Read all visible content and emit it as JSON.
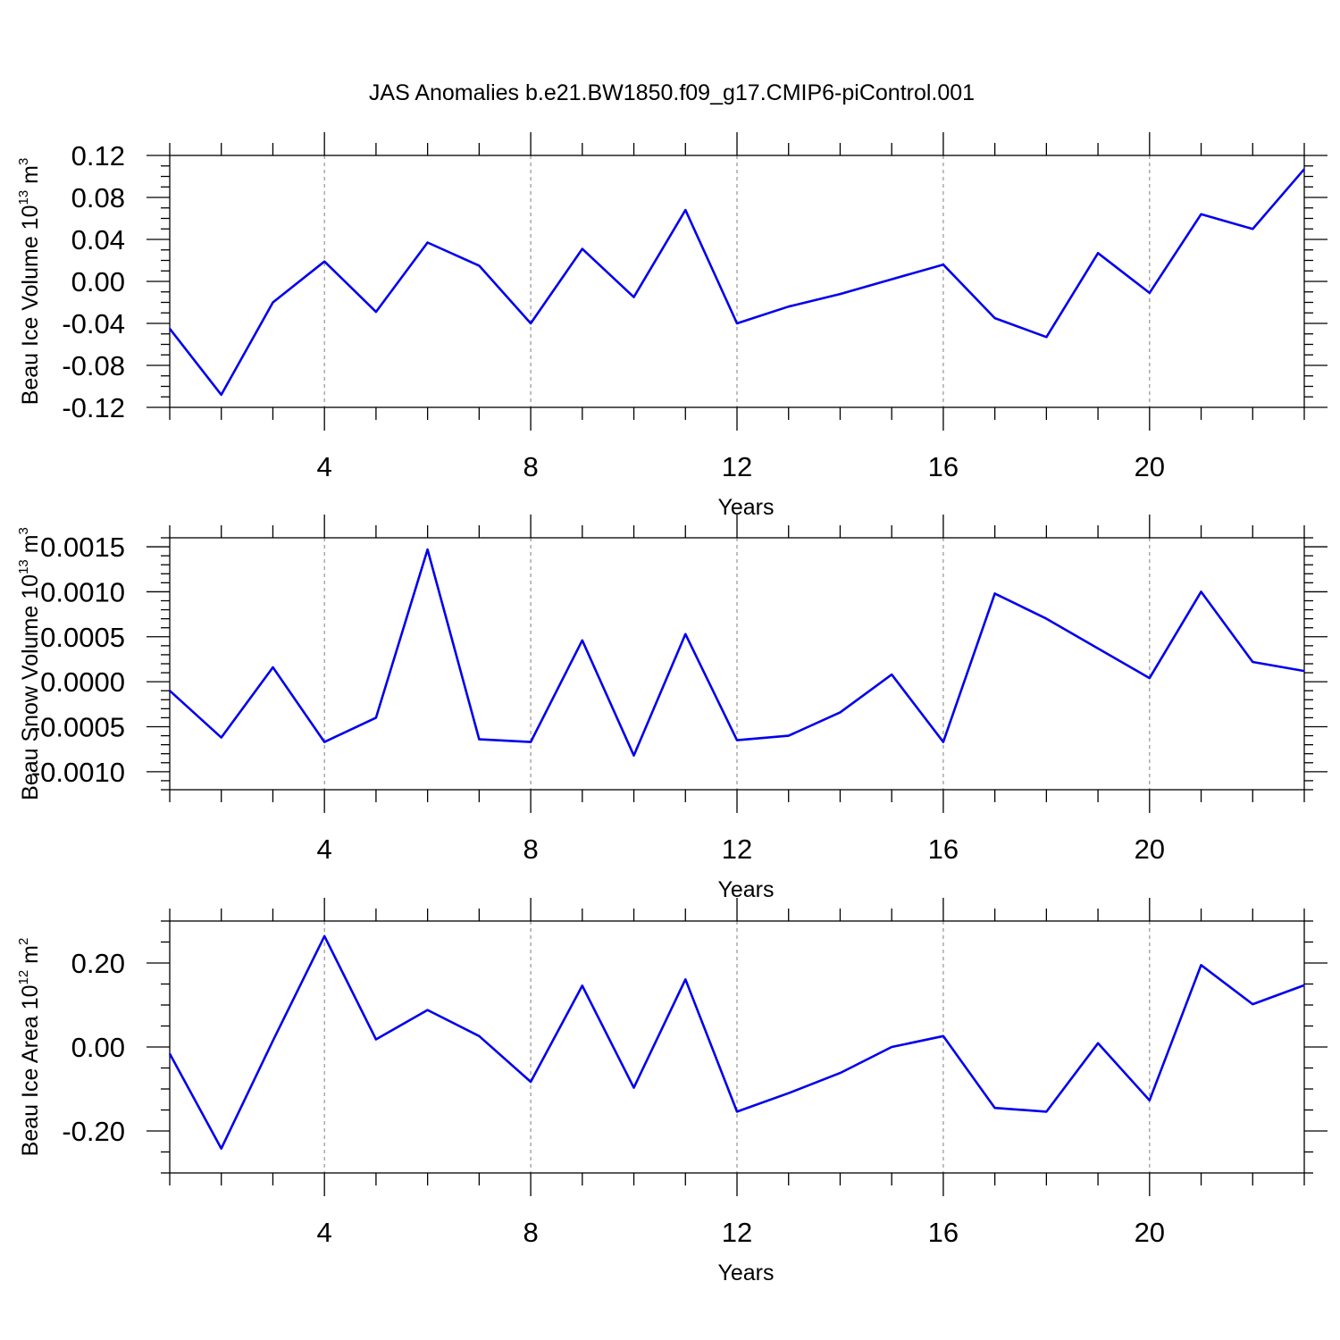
{
  "figure": {
    "title": "JAS Anomalies b.e21.BW1850.f09_g17.CMIP6-piControl.001"
  },
  "chart_data": [
    {
      "type": "line",
      "xlabel": "Years",
      "ylabel_main": "Beau Ice Volume 10",
      "ylabel_sup": "13",
      "ylabel_unit": " m",
      "ylabel_unit_sup": "3",
      "xlim": [
        1,
        23
      ],
      "ylim": [
        -0.12,
        0.12
      ],
      "x_ticks": [
        4,
        8,
        12,
        16,
        20
      ],
      "x_tick_labels": [
        "4",
        "8",
        "12",
        "16",
        "20"
      ],
      "y_ticks": [
        -0.12,
        -0.08,
        -0.04,
        0.0,
        0.04,
        0.08,
        0.12
      ],
      "y_tick_labels": [
        "-0.12",
        "-0.08",
        "-0.04",
        "0.00",
        "0.04",
        "0.08",
        "0.12"
      ],
      "y_minor_step": 0.01,
      "grid_x": true,
      "color": "#0000ee",
      "x": [
        1,
        2,
        3,
        4,
        5,
        6,
        7,
        8,
        9,
        10,
        11,
        12,
        13,
        14,
        15,
        16,
        17,
        18,
        19,
        20,
        21,
        22,
        23
      ],
      "values": [
        -0.045,
        -0.108,
        -0.02,
        0.019,
        -0.029,
        0.037,
        0.015,
        -0.04,
        0.031,
        -0.015,
        0.068,
        -0.04,
        -0.024,
        -0.012,
        0.002,
        0.016,
        -0.035,
        -0.053,
        0.027,
        -0.011,
        0.064,
        0.05,
        0.107
      ]
    },
    {
      "type": "line",
      "xlabel": "Years",
      "ylabel_main": "Beau Snow Volume 10",
      "ylabel_sup": "13",
      "ylabel_unit": " m",
      "ylabel_unit_sup": "3",
      "xlim": [
        1,
        23
      ],
      "ylim": [
        -0.0012,
        0.0016
      ],
      "x_ticks": [
        4,
        8,
        12,
        16,
        20
      ],
      "x_tick_labels": [
        "4",
        "8",
        "12",
        "16",
        "20"
      ],
      "y_ticks": [
        -0.001,
        -0.0005,
        0.0,
        0.0005,
        0.001,
        0.0015
      ],
      "y_tick_labels": [
        "-0.0010",
        "-0.0005",
        "0.0000",
        "0.0005",
        "0.0010",
        "0.0015"
      ],
      "y_minor_step": 0.0001,
      "grid_x": true,
      "color": "#0000ee",
      "x": [
        1,
        2,
        3,
        4,
        5,
        6,
        7,
        8,
        9,
        10,
        11,
        12,
        13,
        14,
        15,
        16,
        17,
        18,
        19,
        20,
        21,
        22,
        23
      ],
      "values": [
        -0.0001,
        -0.00062,
        0.00016,
        -0.00067,
        -0.0004,
        0.00147,
        -0.00064,
        -0.00067,
        0.00046,
        -0.00082,
        0.00053,
        -0.00065,
        -0.0006,
        -0.00034,
        8e-05,
        -0.00067,
        0.00098,
        0.0007,
        0.00037,
        4e-05,
        0.001,
        0.00022,
        0.00012
      ]
    },
    {
      "type": "line",
      "xlabel": "Years",
      "ylabel_main": "Beau Ice Area 10",
      "ylabel_sup": "12",
      "ylabel_unit": " m",
      "ylabel_unit_sup": "2",
      "xlim": [
        1,
        23
      ],
      "ylim": [
        -0.3,
        0.3
      ],
      "x_ticks": [
        4,
        8,
        12,
        16,
        20
      ],
      "x_tick_labels": [
        "4",
        "8",
        "12",
        "16",
        "20"
      ],
      "y_ticks": [
        -0.2,
        0.0,
        0.2
      ],
      "y_tick_labels": [
        "-0.20",
        "0.00",
        "0.20"
      ],
      "y_minor_step": 0.05,
      "grid_x": true,
      "color": "#0000ee",
      "x": [
        1,
        2,
        3,
        4,
        5,
        6,
        7,
        8,
        9,
        10,
        11,
        12,
        13,
        14,
        15,
        16,
        17,
        18,
        19,
        20,
        21,
        22,
        23
      ],
      "values": [
        -0.016,
        -0.242,
        0.015,
        0.264,
        0.018,
        0.088,
        0.026,
        -0.083,
        0.146,
        -0.097,
        0.161,
        -0.154,
        -0.11,
        -0.062,
        0.0,
        0.026,
        -0.145,
        -0.154,
        0.009,
        -0.127,
        0.195,
        0.102,
        0.147
      ]
    }
  ]
}
